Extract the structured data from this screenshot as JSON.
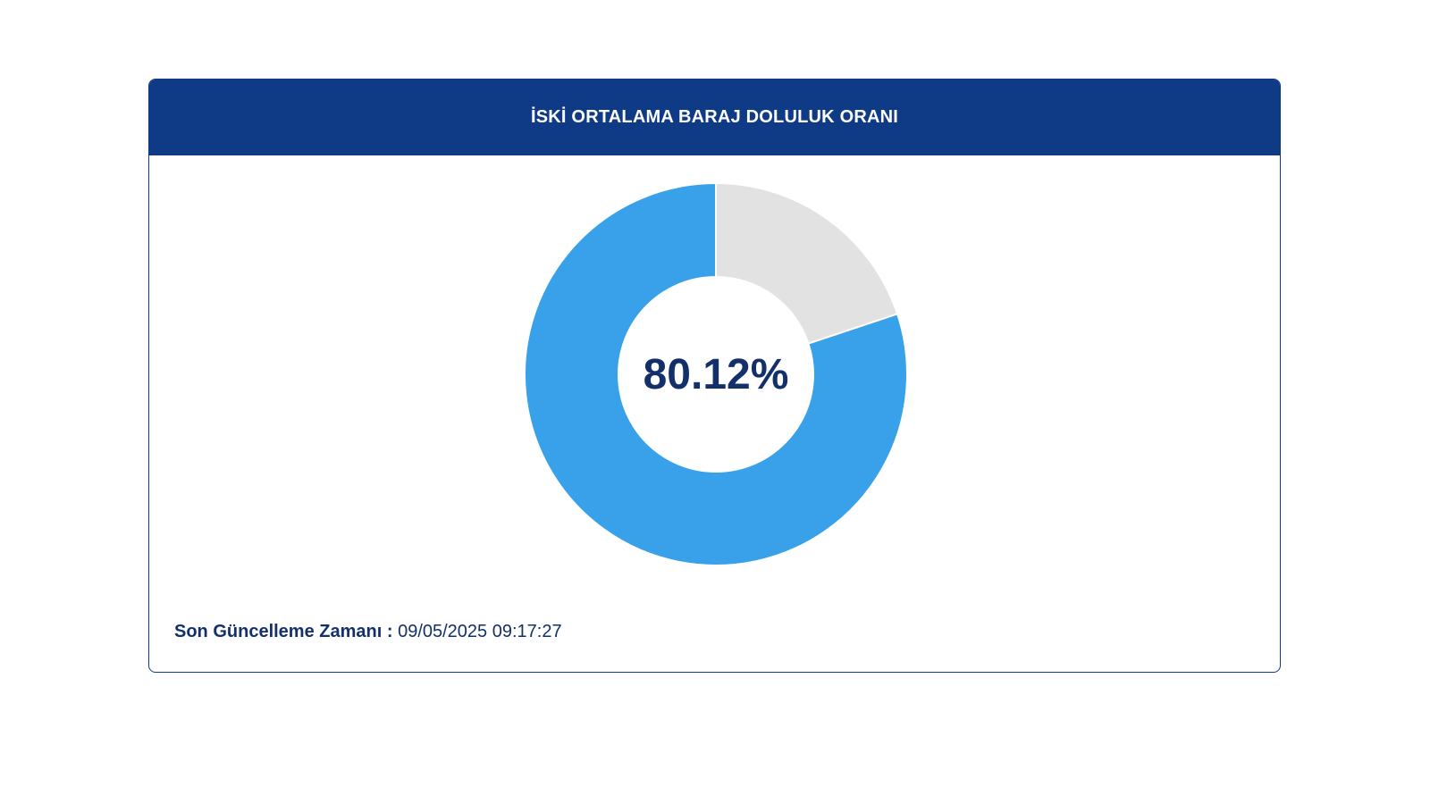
{
  "header": {
    "title": "İSKİ ORTALAMA BARAJ DOLULUK ORANI"
  },
  "chart_data": {
    "type": "pie",
    "title": "İSKİ ORTALAMA BARAJ DOLULUK ORANI",
    "center_label": "80.12%",
    "slices": [
      {
        "value": 80.12,
        "color": "#38a1ea"
      },
      {
        "value": 19.88,
        "color": "#e2e2e2"
      }
    ]
  },
  "footer": {
    "label": "Son Güncelleme Zamanı :",
    "value": "09/05/2025 09:17:27"
  },
  "colors": {
    "brand": "#0f3a85",
    "text": "#13306b",
    "filled": "#38a1ea",
    "empty": "#e2e2e2"
  }
}
